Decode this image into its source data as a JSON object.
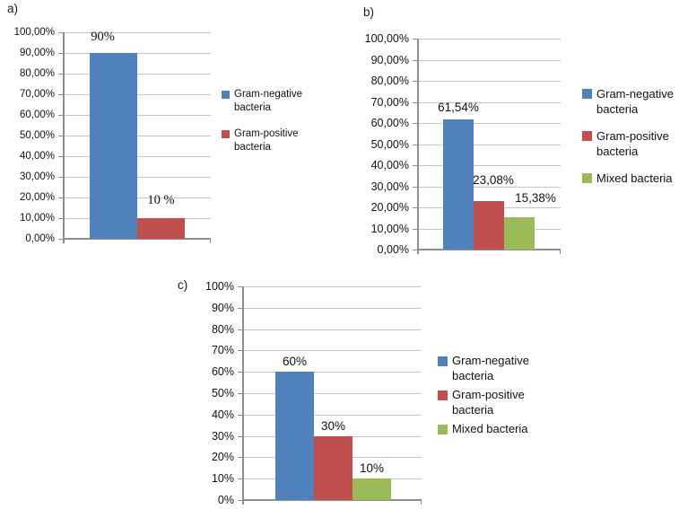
{
  "figure": {
    "background": "#ffffff",
    "description": "Three bar charts of bacteria culture results"
  },
  "colors": {
    "gram_negative": "#4f81bd",
    "gram_positive": "#c0504d",
    "mixed": "#9bbb59",
    "gridline": "#c6c6c6",
    "axis": "#8e8e8e",
    "text": "#111111"
  },
  "chart_data": [
    {
      "type": "bar",
      "panel_label": "a)",
      "categories": [
        "Gram-negative bacteria",
        "Gram-positive bacteria"
      ],
      "values": [
        90,
        10
      ],
      "value_labels": [
        "90%",
        "10 %"
      ],
      "series_colors": [
        "#4f81bd",
        "#c0504d"
      ],
      "y_axis": {
        "min": 0,
        "max": 100,
        "tick_labels": [
          "100,00%",
          "90,00%",
          "80,00%",
          "70,00%",
          "60,00%",
          "50,00%",
          "40,00%",
          "30,00%",
          "20,00%",
          "10,00%",
          "0,00%"
        ]
      },
      "grid": true,
      "legend": {
        "position": "right",
        "entries": [
          {
            "label": "Gram-negative bacteria",
            "color": "#4f81bd"
          },
          {
            "label": "Gram-positive bacteria",
            "color": "#c0504d"
          }
        ]
      }
    },
    {
      "type": "bar",
      "panel_label": "b)",
      "categories": [
        "Gram-negative bacteria",
        "Gram-positive bacteria",
        "Mixed bacteria"
      ],
      "values": [
        61.54,
        23.08,
        15.38
      ],
      "value_labels": [
        "61,54%",
        "23,08%",
        "15,38%"
      ],
      "series_colors": [
        "#4f81bd",
        "#c0504d",
        "#9bbb59"
      ],
      "y_axis": {
        "min": 0,
        "max": 100,
        "tick_labels": [
          "100,00%",
          "90,00%",
          "80,00%",
          "70,00%",
          "60,00%",
          "50,00%",
          "40,00%",
          "30,00%",
          "20,00%",
          "10,00%",
          "0,00%"
        ]
      },
      "grid": true,
      "legend": {
        "position": "right",
        "entries": [
          {
            "label": "Gram-negative bacteria",
            "color": "#4f81bd"
          },
          {
            "label": "Gram-positive bacteria",
            "color": "#c0504d"
          },
          {
            "label": "Mixed bacteria",
            "color": "#9bbb59"
          }
        ]
      }
    },
    {
      "type": "bar",
      "panel_label": "c)",
      "categories": [
        "Gram-negative bacteria",
        "Gram-positive bacteria",
        "Mixed bacteria"
      ],
      "values": [
        60,
        30,
        10
      ],
      "value_labels": [
        "60%",
        "30%",
        "10%"
      ],
      "series_colors": [
        "#4f81bd",
        "#c0504d",
        "#9bbb59"
      ],
      "y_axis": {
        "min": 0,
        "max": 100,
        "tick_labels": [
          "100%",
          "90%",
          "80%",
          "70%",
          "60%",
          "50%",
          "40%",
          "30%",
          "20%",
          "10%",
          "0%"
        ]
      },
      "grid": true,
      "legend": {
        "position": "right",
        "entries": [
          {
            "label": "Gram-negative bacteria",
            "color": "#4f81bd"
          },
          {
            "label": "Gram-positive bacteria",
            "color": "#c0504d"
          },
          {
            "label": "Mixed bacteria",
            "color": "#9bbb59"
          }
        ]
      }
    }
  ]
}
